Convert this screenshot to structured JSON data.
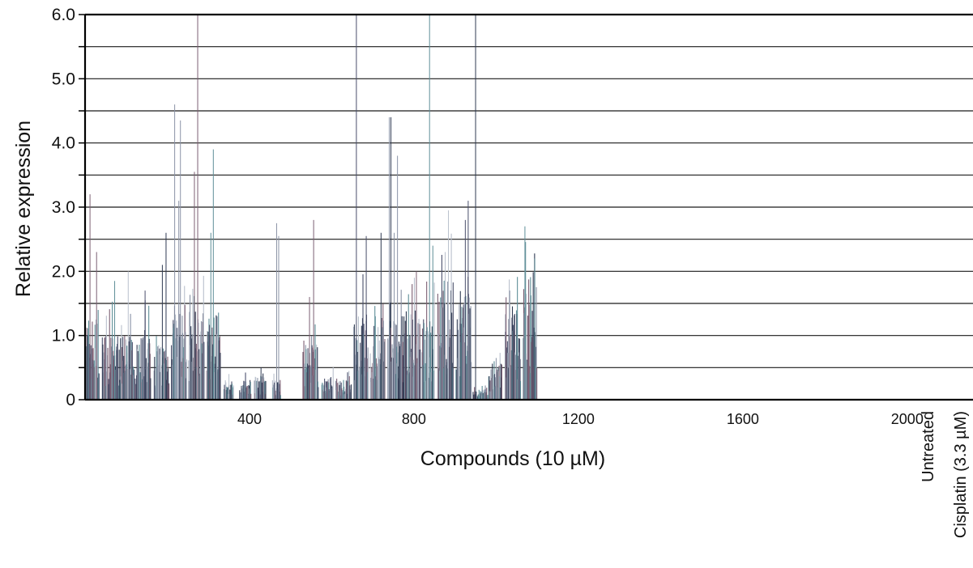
{
  "chart_data": {
    "type": "bar",
    "title": "",
    "xlabel": "Compounds (10 µM)",
    "ylabel": "Relative expression",
    "ylim": [
      0,
      6.0
    ],
    "xlim": [
      0,
      2160
    ],
    "grid": true,
    "y_ticks": [
      {
        "value": 0,
        "label": "0"
      },
      {
        "value": 1.0,
        "label": "1.0"
      },
      {
        "value": 2.0,
        "label": "2.0"
      },
      {
        "value": 3.0,
        "label": "3.0"
      },
      {
        "value": 4.0,
        "label": "4.0"
      },
      {
        "value": 5.0,
        "label": "5.0"
      },
      {
        "value": 6.0,
        "label": "6.0"
      }
    ],
    "x_ticks": [
      {
        "value": 400,
        "label": "400"
      },
      {
        "value": 800,
        "label": "800"
      },
      {
        "value": 1200,
        "label": "1200"
      },
      {
        "value": 1600,
        "label": "1600"
      },
      {
        "value": 2000,
        "label": "2000"
      }
    ],
    "control_labels": [
      "Untreated",
      "Cisplatin (3.3 µM)"
    ],
    "colors": [
      "#2f3a52",
      "#8a93a6",
      "#7c5f73",
      "#5f8f98",
      "#b9c0cc",
      "#4a4f6b"
    ],
    "groups": [
      {
        "x_start": 0,
        "x_end": 35,
        "level": 1.05,
        "peaks": [
          [
            12,
            3.2
          ],
          [
            28,
            2.3
          ]
        ]
      },
      {
        "x_start": 42,
        "x_end": 80,
        "level": 0.85,
        "peaks": [
          [
            72,
            1.85
          ]
        ]
      },
      {
        "x_start": 82,
        "x_end": 120,
        "level": 0.8,
        "peaks": [
          [
            105,
            2.0
          ]
        ]
      },
      {
        "x_start": 122,
        "x_end": 160,
        "level": 0.9,
        "peaks": [
          [
            146,
            1.7
          ]
        ]
      },
      {
        "x_start": 168,
        "x_end": 205,
        "level": 0.75,
        "peaks": [
          [
            188,
            2.1
          ],
          [
            197,
            2.6
          ]
        ]
      },
      {
        "x_start": 210,
        "x_end": 248,
        "level": 1.2,
        "peaks": [
          [
            218,
            4.6
          ],
          [
            232,
            4.35
          ],
          [
            228,
            3.1
          ]
        ]
      },
      {
        "x_start": 252,
        "x_end": 290,
        "level": 1.1,
        "peaks": [
          [
            266,
            3.55
          ],
          [
            274,
            6.0
          ]
        ]
      },
      {
        "x_start": 296,
        "x_end": 330,
        "level": 1.05,
        "peaks": [
          [
            312,
            3.9
          ],
          [
            306,
            2.6
          ]
        ]
      },
      {
        "x_start": 338,
        "x_end": 362,
        "level": 0.25,
        "peaks": [
          [
            350,
            0.4
          ]
        ]
      },
      {
        "x_start": 376,
        "x_end": 404,
        "level": 0.25,
        "peaks": []
      },
      {
        "x_start": 412,
        "x_end": 440,
        "level": 0.3,
        "peaks": [
          [
            428,
            0.5
          ]
        ]
      },
      {
        "x_start": 456,
        "x_end": 476,
        "level": 0.25,
        "peaks": [
          [
            466,
            2.75
          ],
          [
            471,
            2.55
          ]
        ]
      },
      {
        "x_start": 530,
        "x_end": 568,
        "level": 0.75,
        "peaks": [
          [
            556,
            2.8
          ],
          [
            546,
            1.6
          ]
        ]
      },
      {
        "x_start": 576,
        "x_end": 604,
        "level": 0.3,
        "peaks": []
      },
      {
        "x_start": 610,
        "x_end": 648,
        "level": 0.25,
        "peaks": []
      },
      {
        "x_start": 654,
        "x_end": 690,
        "level": 1.1,
        "peaks": [
          [
            660,
            6.0
          ],
          [
            684,
            2.55
          ]
        ]
      },
      {
        "x_start": 694,
        "x_end": 730,
        "level": 1.05,
        "peaks": [
          [
            720,
            2.6
          ],
          [
            744,
            4.4
          ]
        ]
      },
      {
        "x_start": 736,
        "x_end": 776,
        "level": 1.05,
        "peaks": [
          [
            752,
            2.6
          ],
          [
            760,
            3.8
          ],
          [
            740,
            4.4
          ]
        ]
      },
      {
        "x_start": 778,
        "x_end": 816,
        "level": 1.15,
        "peaks": [
          [
            806,
            2.0
          ]
        ]
      },
      {
        "x_start": 820,
        "x_end": 850,
        "level": 1.05,
        "peaks": [
          [
            838,
            6.0
          ],
          [
            846,
            2.4
          ]
        ]
      },
      {
        "x_start": 858,
        "x_end": 896,
        "level": 1.5,
        "peaks": [
          [
            884,
            2.95
          ],
          [
            876,
            2.3
          ]
        ]
      },
      {
        "x_start": 902,
        "x_end": 940,
        "level": 1.35,
        "peaks": [
          [
            925,
            2.8
          ],
          [
            932,
            3.1
          ]
        ]
      },
      {
        "x_start": 944,
        "x_end": 980,
        "level": 0.15,
        "peaks": [
          [
            950,
            6.0
          ]
        ]
      },
      {
        "x_start": 982,
        "x_end": 1015,
        "level": 0.45,
        "peaks": [
          [
            1000,
            0.65
          ]
        ]
      },
      {
        "x_start": 1022,
        "x_end": 1060,
        "level": 1.15,
        "peaks": []
      },
      {
        "x_start": 1066,
        "x_end": 1100,
        "level": 1.6,
        "peaks": [
          [
            1070,
            2.7
          ],
          [
            1094,
            2.2
          ]
        ]
      }
    ]
  }
}
